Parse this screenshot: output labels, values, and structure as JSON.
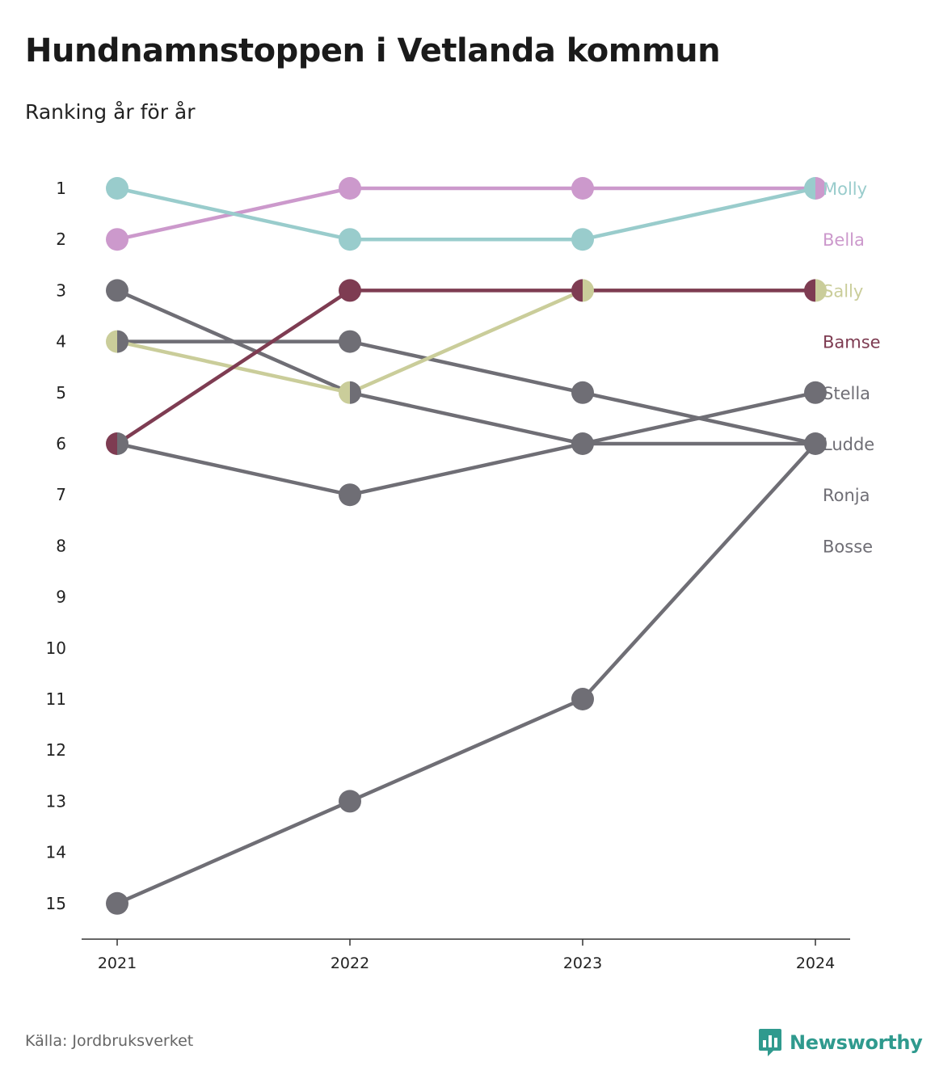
{
  "title": "Hundnamnstoppen i Vetlanda kommun",
  "subtitle": "Ranking år för år",
  "source": "Källa: Jordbruksverket",
  "brand": "Newsworthy",
  "colors": {
    "brand": "#2f9a8e",
    "axis": "#333333"
  },
  "chart_data": {
    "type": "line",
    "x": [
      "2021",
      "2022",
      "2023",
      "2024"
    ],
    "y_ticks": [
      "1",
      "2",
      "3",
      "4",
      "5",
      "6",
      "7",
      "8",
      "9",
      "10",
      "11",
      "12",
      "13",
      "14",
      "15"
    ],
    "ylim": [
      1,
      15
    ],
    "y_reversed": true,
    "grid": false,
    "legend": "right",
    "series": [
      {
        "name": "Ronja",
        "color": "#6f6e75",
        "values": [
          4,
          4,
          5,
          6
        ]
      },
      {
        "name": "Stella",
        "color": "#6f6e75",
        "values": [
          6,
          7,
          6,
          5
        ]
      },
      {
        "name": "Ludde",
        "color": "#6f6e75",
        "values": [
          3,
          5,
          6,
          6
        ]
      },
      {
        "name": "Bosse",
        "color": "#6f6e75",
        "values": [
          15,
          13,
          11,
          6
        ]
      },
      {
        "name": "Sally",
        "color": "#cacd9a",
        "values": [
          4,
          5,
          3,
          3
        ]
      },
      {
        "name": "Bamse",
        "color": "#7e3c52",
        "values": [
          6,
          3,
          3,
          3
        ]
      },
      {
        "name": "Bella",
        "color": "#cc99cc",
        "values": [
          2,
          1,
          1,
          1
        ]
      },
      {
        "name": "Molly",
        "color": "#99cccc",
        "values": [
          1,
          2,
          2,
          1
        ]
      }
    ],
    "labels": [
      {
        "text": "Molly",
        "color": "#99cccc",
        "rank": 1
      },
      {
        "text": "Bella",
        "color": "#cc99cc",
        "rank": 2
      },
      {
        "text": "Sally",
        "color": "#cacd9a",
        "rank": 3
      },
      {
        "text": "Bamse",
        "color": "#7e3c52",
        "rank": 4
      },
      {
        "text": "Stella",
        "color": "#6f6e75",
        "rank": 5
      },
      {
        "text": "Ludde",
        "color": "#6f6e75",
        "rank": 6
      },
      {
        "text": "Ronja",
        "color": "#6f6e75",
        "rank": 7
      },
      {
        "text": "Bosse",
        "color": "#6f6e75",
        "rank": 8
      }
    ]
  }
}
